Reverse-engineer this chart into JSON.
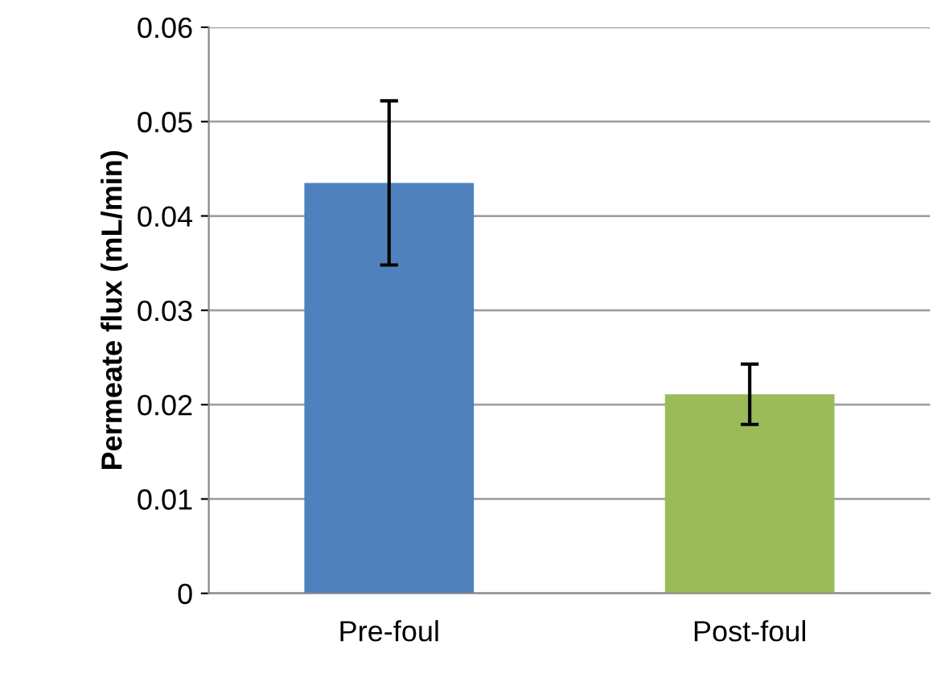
{
  "chart_data": {
    "type": "bar",
    "ylabel": "Permeate flux (mL/min)",
    "categories": [
      "Pre-foul",
      "Post-foul"
    ],
    "values": [
      0.0435,
      0.0211
    ],
    "colors": [
      "#4f81bd",
      "#9bbb59"
    ],
    "errors": [
      0.0087,
      0.0032
    ],
    "ylim": [
      0,
      0.06
    ],
    "yticks": [
      0,
      0.01,
      0.02,
      0.03,
      0.04,
      0.05,
      0.06
    ],
    "grid": "y"
  }
}
